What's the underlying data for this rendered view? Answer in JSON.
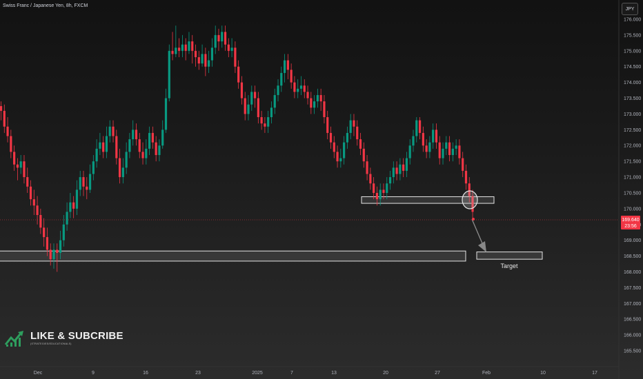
{
  "header": {
    "title": "Swiss Franc / Japanese Yen, 8h, FXCM",
    "currency": "JPY"
  },
  "price_label": {
    "price": "169.640",
    "countdown": "23:56"
  },
  "watermark": {
    "main": "LIKE & SUBCRIBE",
    "sub": "(STRATEGIES/EDUCATIONALS)"
  },
  "chart_data": {
    "type": "candlestick",
    "symbol": "CHFJPY",
    "timeframe": "8h",
    "yaxis": {
      "ticks": [
        "176.000",
        "175.500",
        "175.000",
        "174.500",
        "174.000",
        "173.500",
        "173.000",
        "172.500",
        "172.000",
        "171.500",
        "171.000",
        "170.500",
        "170.000",
        "169.500",
        "169.000",
        "168.500",
        "168.000",
        "167.500",
        "167.000",
        "166.500",
        "166.000",
        "165.500"
      ],
      "range": [
        165.32,
        176.32
      ]
    },
    "xaxis": {
      "ticks": [
        "Dec",
        "9",
        "16",
        "23",
        "2025",
        "7",
        "13",
        "20",
        "27",
        "Feb",
        "10",
        "17"
      ]
    },
    "candles": [
      [
        173.25,
        173.1,
        173.4,
        172.8
      ],
      [
        173.1,
        172.6,
        173.3,
        172.4
      ],
      [
        172.6,
        172.3,
        172.9,
        172.1
      ],
      [
        172.3,
        171.8,
        172.5,
        171.6
      ],
      [
        171.8,
        171.4,
        172.0,
        171.2
      ],
      [
        171.4,
        171.3,
        171.6,
        170.9
      ],
      [
        171.3,
        171.5,
        171.7,
        171.1
      ],
      [
        171.5,
        171.0,
        171.7,
        170.8
      ],
      [
        171.0,
        170.7,
        171.3,
        170.5
      ],
      [
        170.7,
        170.3,
        170.9,
        170.1
      ],
      [
        170.3,
        170.1,
        170.6,
        169.8
      ],
      [
        170.1,
        169.8,
        170.4,
        169.5
      ],
      [
        169.8,
        169.4,
        170.0,
        169.2
      ],
      [
        169.4,
        169.1,
        169.7,
        168.8
      ],
      [
        169.1,
        168.7,
        169.4,
        168.5
      ],
      [
        168.7,
        168.4,
        168.9,
        168.2
      ],
      [
        168.4,
        168.7,
        168.9,
        168.1
      ],
      [
        168.7,
        168.6,
        168.9,
        168.0
      ],
      [
        168.6,
        169.0,
        169.3,
        168.4
      ],
      [
        169.0,
        169.5,
        169.8,
        168.8
      ],
      [
        169.5,
        169.9,
        170.2,
        169.3
      ],
      [
        169.9,
        170.2,
        170.5,
        169.7
      ],
      [
        170.2,
        170.0,
        170.4,
        169.7
      ],
      [
        170.0,
        170.6,
        170.9,
        169.8
      ],
      [
        170.6,
        171.0,
        171.2,
        170.4
      ],
      [
        171.0,
        170.7,
        171.2,
        170.4
      ],
      [
        170.7,
        170.6,
        171.0,
        170.3
      ],
      [
        170.6,
        171.1,
        171.4,
        170.5
      ],
      [
        171.1,
        171.5,
        171.7,
        170.9
      ],
      [
        171.5,
        171.9,
        172.2,
        171.3
      ],
      [
        171.9,
        172.1,
        172.4,
        171.7
      ],
      [
        172.1,
        171.8,
        172.3,
        171.6
      ],
      [
        171.8,
        172.3,
        172.6,
        171.6
      ],
      [
        172.3,
        172.6,
        172.8,
        172.1
      ],
      [
        172.6,
        172.3,
        172.8,
        172.1
      ],
      [
        172.3,
        171.6,
        172.5,
        171.4
      ],
      [
        171.6,
        171.0,
        171.9,
        170.8
      ],
      [
        171.0,
        171.3,
        171.6,
        170.8
      ],
      [
        171.3,
        171.8,
        172.1,
        171.1
      ],
      [
        171.8,
        172.2,
        172.4,
        171.6
      ],
      [
        172.2,
        172.5,
        172.8,
        172.0
      ],
      [
        172.5,
        172.2,
        172.7,
        172.0
      ],
      [
        172.2,
        171.8,
        172.4,
        171.6
      ],
      [
        171.8,
        171.6,
        172.1,
        171.4
      ],
      [
        171.6,
        171.9,
        172.2,
        171.4
      ],
      [
        171.9,
        172.4,
        172.6,
        171.7
      ],
      [
        172.4,
        172.1,
        172.6,
        171.9
      ],
      [
        172.1,
        171.7,
        172.3,
        171.5
      ],
      [
        171.7,
        172.0,
        172.2,
        171.5
      ],
      [
        172.0,
        172.5,
        172.8,
        171.9
      ],
      [
        172.5,
        173.5,
        173.8,
        172.4
      ],
      [
        173.5,
        175.0,
        175.2,
        173.4
      ],
      [
        175.0,
        174.9,
        175.6,
        174.7
      ],
      [
        174.9,
        175.1,
        175.8,
        174.8
      ],
      [
        175.1,
        175.0,
        175.4,
        174.8
      ],
      [
        175.0,
        175.2,
        175.5,
        174.8
      ],
      [
        175.2,
        175.0,
        175.4,
        174.7
      ],
      [
        175.0,
        175.3,
        175.6,
        174.9
      ],
      [
        175.3,
        175.0,
        175.5,
        174.6
      ],
      [
        175.0,
        174.8,
        175.2,
        174.5
      ],
      [
        174.8,
        174.6,
        175.0,
        174.4
      ],
      [
        174.6,
        174.9,
        175.2,
        174.5
      ],
      [
        174.9,
        174.5,
        175.1,
        174.2
      ],
      [
        174.5,
        174.7,
        175.0,
        174.3
      ],
      [
        174.7,
        175.1,
        175.4,
        174.5
      ],
      [
        175.1,
        175.5,
        175.8,
        174.9
      ],
      [
        175.5,
        175.3,
        175.7,
        175.0
      ],
      [
        175.3,
        175.6,
        175.8,
        175.1
      ],
      [
        175.6,
        175.2,
        175.8,
        175.0
      ],
      [
        175.2,
        175.0,
        175.4,
        174.8
      ],
      [
        175.0,
        175.1,
        175.4,
        174.8
      ],
      [
        175.1,
        174.5,
        175.3,
        174.3
      ],
      [
        174.5,
        174.0,
        174.7,
        173.8
      ],
      [
        174.0,
        173.5,
        174.2,
        173.3
      ],
      [
        173.5,
        173.0,
        173.7,
        172.8
      ],
      [
        173.0,
        173.3,
        173.6,
        172.8
      ],
      [
        173.3,
        173.7,
        173.9,
        173.1
      ],
      [
        173.7,
        173.5,
        173.9,
        173.2
      ],
      [
        173.5,
        172.9,
        173.7,
        172.7
      ],
      [
        172.9,
        172.7,
        173.1,
        172.5
      ],
      [
        172.7,
        172.6,
        172.9,
        172.4
      ],
      [
        172.6,
        172.9,
        173.1,
        172.4
      ],
      [
        172.9,
        173.2,
        173.4,
        172.7
      ],
      [
        173.2,
        173.6,
        173.8,
        173.0
      ],
      [
        173.6,
        173.9,
        174.1,
        173.4
      ],
      [
        173.9,
        174.3,
        174.5,
        173.7
      ],
      [
        174.3,
        174.7,
        174.9,
        174.0
      ],
      [
        174.7,
        174.4,
        174.9,
        174.1
      ],
      [
        174.4,
        174.0,
        174.6,
        173.8
      ],
      [
        174.0,
        173.7,
        174.2,
        173.5
      ],
      [
        173.7,
        173.8,
        174.1,
        173.5
      ],
      [
        173.8,
        173.9,
        174.2,
        173.6
      ],
      [
        173.9,
        173.7,
        174.1,
        173.5
      ],
      [
        173.7,
        173.5,
        173.9,
        173.3
      ],
      [
        173.5,
        173.2,
        173.7,
        173.0
      ],
      [
        173.2,
        173.4,
        173.6,
        173.0
      ],
      [
        173.4,
        173.6,
        173.8,
        173.2
      ],
      [
        173.6,
        173.4,
        173.8,
        173.1
      ],
      [
        173.4,
        172.9,
        173.6,
        172.7
      ],
      [
        172.9,
        172.4,
        173.1,
        172.2
      ],
      [
        172.4,
        172.1,
        172.6,
        171.9
      ],
      [
        172.1,
        171.8,
        172.3,
        171.6
      ],
      [
        171.8,
        171.5,
        172.0,
        171.3
      ],
      [
        171.5,
        171.6,
        171.9,
        171.3
      ],
      [
        171.6,
        172.1,
        172.3,
        171.4
      ],
      [
        172.1,
        172.4,
        172.6,
        171.9
      ],
      [
        172.4,
        172.8,
        173.0,
        172.2
      ],
      [
        172.8,
        172.6,
        173.0,
        172.3
      ],
      [
        172.6,
        172.2,
        172.8,
        172.0
      ],
      [
        172.2,
        171.9,
        172.4,
        171.7
      ],
      [
        171.9,
        171.5,
        172.1,
        171.3
      ],
      [
        171.5,
        171.1,
        171.7,
        170.9
      ],
      [
        171.1,
        170.8,
        171.3,
        170.6
      ],
      [
        170.8,
        170.5,
        171.0,
        170.3
      ],
      [
        170.5,
        170.3,
        170.7,
        170.1
      ],
      [
        170.3,
        170.6,
        170.8,
        170.1
      ],
      [
        170.6,
        170.5,
        170.8,
        170.3
      ],
      [
        170.5,
        170.8,
        171.0,
        170.3
      ],
      [
        170.8,
        171.0,
        171.2,
        170.6
      ],
      [
        171.0,
        171.3,
        171.5,
        170.8
      ],
      [
        171.3,
        171.1,
        171.5,
        170.9
      ],
      [
        171.1,
        171.4,
        171.6,
        170.9
      ],
      [
        171.4,
        171.2,
        171.6,
        171.0
      ],
      [
        171.2,
        171.6,
        171.8,
        171.0
      ],
      [
        171.6,
        172.0,
        172.2,
        171.4
      ],
      [
        172.0,
        172.3,
        172.5,
        171.8
      ],
      [
        172.3,
        172.8,
        172.9,
        172.1
      ],
      [
        172.8,
        172.4,
        172.9,
        172.2
      ],
      [
        172.4,
        172.0,
        172.6,
        171.8
      ],
      [
        172.0,
        171.8,
        172.2,
        171.6
      ],
      [
        171.8,
        172.1,
        172.3,
        171.6
      ],
      [
        172.1,
        172.5,
        172.7,
        171.9
      ],
      [
        172.5,
        172.1,
        172.7,
        171.9
      ],
      [
        172.1,
        171.6,
        172.3,
        171.4
      ],
      [
        171.6,
        171.9,
        172.1,
        171.4
      ],
      [
        171.9,
        172.1,
        172.3,
        171.7
      ],
      [
        172.1,
        171.7,
        172.3,
        171.5
      ],
      [
        171.7,
        171.9,
        172.1,
        171.5
      ],
      [
        171.9,
        172.0,
        172.2,
        171.7
      ],
      [
        172.0,
        171.6,
        172.2,
        171.4
      ],
      [
        171.6,
        171.2,
        171.8,
        171.0
      ],
      [
        171.2,
        170.8,
        171.4,
        170.6
      ],
      [
        170.8,
        170.4,
        171.0,
        170.2
      ],
      [
        170.4,
        169.9,
        170.6,
        169.7
      ]
    ],
    "zones": [
      {
        "label": "",
        "y": [
          168.34,
          168.66
        ]
      },
      {
        "label": "",
        "y": [
          170.17,
          170.38
        ]
      },
      {
        "label": "Target",
        "y": [
          168.4,
          168.63
        ]
      }
    ],
    "last_price": 169.64
  }
}
